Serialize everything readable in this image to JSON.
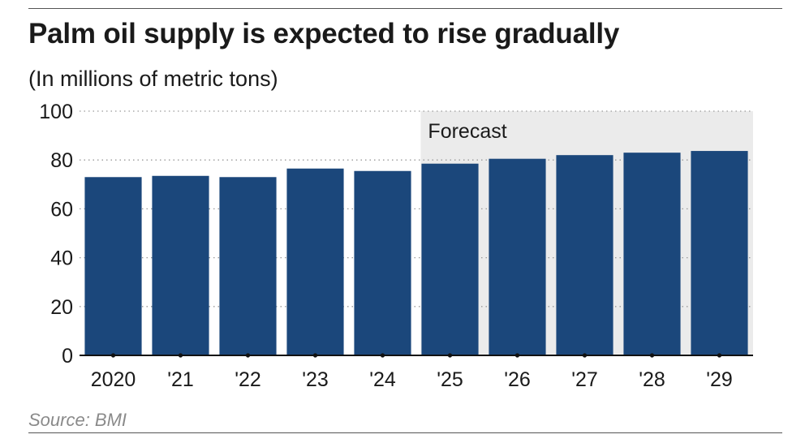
{
  "chart_data": {
    "type": "bar",
    "title": "Palm oil supply is expected to rise gradually",
    "subtitle": "(In millions of metric tons)",
    "source": "Source: BMI",
    "categories": [
      "2020",
      "'21",
      "'22",
      "'23",
      "'24",
      "'25",
      "'26",
      "'27",
      "'28",
      "'29"
    ],
    "values": [
      73,
      73.5,
      73,
      76.5,
      75.5,
      78.5,
      80.5,
      82,
      83,
      83.7
    ],
    "ylim": [
      0,
      100
    ],
    "yticks": [
      0,
      20,
      40,
      60,
      80,
      100
    ],
    "xlabel": "",
    "ylabel": "",
    "grid": "dotted horizontal",
    "forecast": {
      "label": "Forecast",
      "start_category": "'25",
      "end_category": "'29"
    },
    "colors": {
      "bar": "#1b477b",
      "forecast_bg": "#ebebeb",
      "grid": "#9a9a9a",
      "axis": "#111111"
    }
  }
}
